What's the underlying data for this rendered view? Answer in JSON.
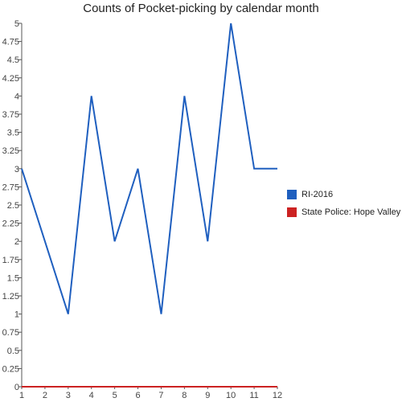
{
  "chart_data": {
    "type": "line",
    "title": "Counts of Pocket-picking by calendar month",
    "xlabel": "",
    "ylabel": "",
    "x": [
      1,
      2,
      3,
      4,
      5,
      6,
      7,
      8,
      9,
      10,
      11,
      12
    ],
    "x_ticks": [
      "1",
      "2",
      "3",
      "4",
      "5",
      "6",
      "7",
      "8",
      "9",
      "10",
      "11",
      "12"
    ],
    "ylim": [
      0,
      5
    ],
    "y_ticks": [
      "0",
      "0.25",
      "0.5",
      "0.75",
      "1",
      "1.25",
      "1.5",
      "1.75",
      "2",
      "2.25",
      "2.5",
      "2.75",
      "3",
      "3.25",
      "3.5",
      "3.75",
      "4",
      "4.25",
      "4.5",
      "4.75",
      "5"
    ],
    "grid": false,
    "legend_position": "right",
    "series": [
      {
        "name": "RI-2016",
        "color": "#1f5fbf",
        "values": [
          3,
          2,
          1,
          4,
          2,
          3,
          1,
          4,
          2,
          5,
          3,
          3
        ]
      },
      {
        "name": "State Police: Hope Valley",
        "color": "#cc2222",
        "values": [
          0,
          0,
          0,
          0,
          0,
          0,
          0,
          0,
          0,
          0,
          0,
          0
        ]
      }
    ]
  }
}
